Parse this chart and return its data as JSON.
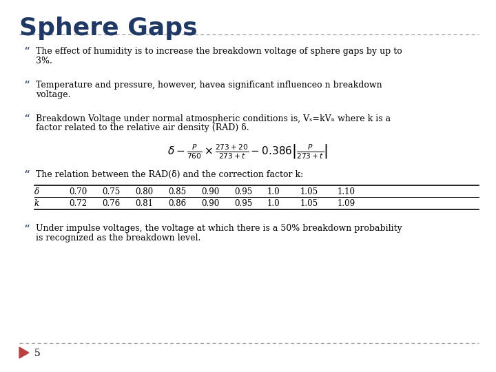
{
  "title": "Sphere Gaps",
  "title_color": "#1F3864",
  "title_fontsize": 26,
  "bg_color": "#FFFFFF",
  "bullet_color": "#1F3864",
  "text_color": "#000000",
  "dashed_line_color": "#9B9B9B",
  "bullet1_line1": "The effect of humidity is to increase the breakdown voltage of sphere gaps by up to",
  "bullet1_line2": "3%.",
  "bullet2_line1": "Temperature and pressure, however, havea significant influenceo n breakdown",
  "bullet2_line2": "voltage.",
  "bullet3_line1": "Breakdown Voltage under normal atmospheric conditions is, Vₛ=kVₙ where k is a",
  "bullet3_line2": "factor related to the relative air density (RAD) δ.",
  "bullet4": "The relation between the RAD(δ) and the correction factor k:",
  "table_headers": [
    "δ",
    "0.70",
    "0.75",
    "0.80",
    "0.85",
    "0.90",
    "0.95",
    "1.0",
    "1.05",
    "1.10"
  ],
  "table_row_k": [
    "k",
    "0.72",
    "0.76",
    "0.81",
    "0.86",
    "0.90",
    "0.95",
    "1.0",
    "1.05",
    "1.09"
  ],
  "bullet5_line1": "Under impulse voltages, the voltage at which there is a 50% breakdown probability",
  "bullet5_line2": "is recognized as the breakdown level.",
  "page_number": "5",
  "arrow_color": "#B94040",
  "text_fontsize": 9.0,
  "table_fontsize": 8.5
}
